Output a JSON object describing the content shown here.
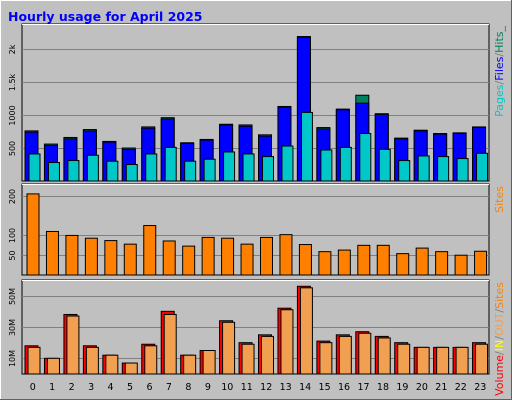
{
  "title": "Hourly usage for April 2025",
  "colors": {
    "background": "#C0C0C0",
    "grid": "#808080",
    "hits": "#00805C",
    "files": "#0000FF",
    "pages": "#00C8C8",
    "sites": "#FF8000",
    "visits": "#FFFF00",
    "kbytes": "#FF0000",
    "kbytes_out": "#F0A050"
  },
  "chart_data": [
    {
      "type": "bar",
      "panel": "hits-files-pages",
      "categories": [
        "0",
        "1",
        "2",
        "3",
        "4",
        "5",
        "6",
        "7",
        "8",
        "9",
        "10",
        "11",
        "12",
        "13",
        "14",
        "15",
        "16",
        "17",
        "18",
        "19",
        "20",
        "21",
        "22",
        "23"
      ],
      "ylim": [
        0,
        2380
      ],
      "yticks": [
        {
          "value": 500,
          "label": "500"
        },
        {
          "value": 1000,
          "label": "1000"
        },
        {
          "value": 1500,
          "label": "1.5k"
        },
        {
          "value": 2000,
          "label": "2k"
        }
      ],
      "series": [
        {
          "name": "Hits",
          "values": [
            760,
            560,
            660,
            780,
            600,
            500,
            820,
            960,
            580,
            630,
            860,
            850,
            700,
            1130,
            2190,
            810,
            1090,
            1300,
            1020,
            650,
            770,
            720,
            730,
            820
          ]
        },
        {
          "name": "Files",
          "values": [
            740,
            540,
            640,
            760,
            590,
            480,
            800,
            940,
            570,
            620,
            850,
            830,
            680,
            1120,
            2180,
            790,
            1080,
            1180,
            1010,
            640,
            760,
            710,
            720,
            810
          ]
        },
        {
          "name": "Pages",
          "values": [
            410,
            280,
            310,
            390,
            300,
            250,
            410,
            510,
            300,
            330,
            440,
            410,
            370,
            530,
            1040,
            470,
            510,
            720,
            480,
            310,
            380,
            370,
            340,
            420
          ]
        }
      ],
      "legend": [
        {
          "text": "Pages",
          "color_key": "pages"
        },
        {
          "text": "/",
          "color_key": "grid"
        },
        {
          "text": "Files",
          "color_key": "files"
        },
        {
          "text": "/",
          "color_key": "grid"
        },
        {
          "text": "Hits_",
          "color_key": "hits"
        }
      ]
    },
    {
      "type": "bar",
      "panel": "sites",
      "categories": [
        "0",
        "1",
        "2",
        "3",
        "4",
        "5",
        "6",
        "7",
        "8",
        "9",
        "10",
        "11",
        "12",
        "13",
        "14",
        "15",
        "16",
        "17",
        "18",
        "19",
        "20",
        "21",
        "22",
        "23"
      ],
      "ylim": [
        0,
        230
      ],
      "yticks": [
        {
          "value": 50,
          "label": "50"
        },
        {
          "value": 100,
          "label": "100"
        },
        {
          "value": 200,
          "label": "200"
        }
      ],
      "series": [
        {
          "name": "Sites",
          "values": [
            205,
            110,
            100,
            93,
            87,
            78,
            125,
            86,
            73,
            95,
            93,
            78,
            95,
            102,
            77,
            59,
            63,
            75,
            75,
            54,
            68,
            59,
            50,
            60
          ]
        }
      ],
      "legend": [
        {
          "text": "Sites",
          "color_key": "sites"
        }
      ]
    },
    {
      "type": "bar",
      "panel": "volume",
      "categories": [
        "0",
        "1",
        "2",
        "3",
        "4",
        "5",
        "6",
        "7",
        "8",
        "9",
        "10",
        "11",
        "12",
        "13",
        "14",
        "15",
        "16",
        "17",
        "18",
        "19",
        "20",
        "21",
        "22",
        "23"
      ],
      "ylim": [
        0,
        60
      ],
      "ylabel_unit": "M",
      "yticks": [
        {
          "value": 10,
          "label": "10M"
        },
        {
          "value": 30,
          "label": "30M"
        },
        {
          "value": 50,
          "label": "50M"
        }
      ],
      "series": [
        {
          "name": "Volume",
          "values": [
            18,
            10,
            38,
            18,
            12,
            7,
            19,
            40,
            12,
            15,
            34,
            20,
            25,
            42,
            56,
            21,
            25,
            27,
            24,
            20,
            17,
            17,
            17,
            20
          ]
        },
        {
          "name": "OUT",
          "values": [
            17,
            10,
            37,
            17,
            12,
            7,
            18,
            38,
            12,
            15,
            33,
            19,
            24,
            41,
            55,
            20,
            24,
            26,
            23,
            19,
            17,
            17,
            17,
            19
          ]
        }
      ],
      "legend": [
        {
          "text": "Volume",
          "color_key": "kbytes"
        },
        {
          "text": "/",
          "color_key": "grid"
        },
        {
          "text": "IN",
          "color_key": "visits"
        },
        {
          "text": "/",
          "color_key": "grid"
        },
        {
          "text": "OUT",
          "color_key": "kbytes_out"
        },
        {
          "text": "/",
          "color_key": "grid"
        },
        {
          "text": "Sites",
          "color_key": "sites"
        }
      ]
    }
  ]
}
